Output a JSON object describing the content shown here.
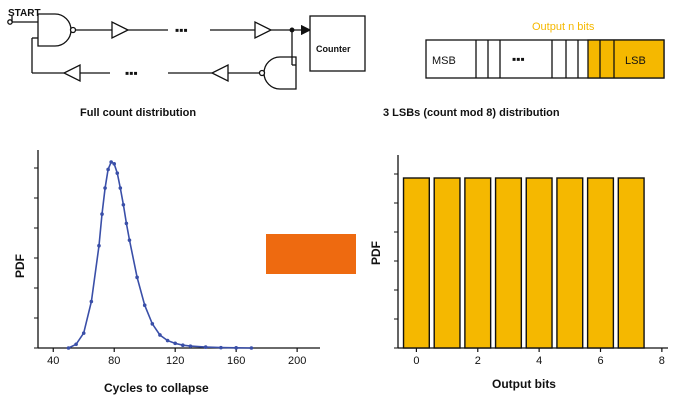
{
  "circuit": {
    "start_label": "START",
    "counter_label": "Counter",
    "ellipsis_top": "▪▪▪",
    "ellipsis_bottom": "▪▪▪"
  },
  "register": {
    "output_label": "Output n bits",
    "msb_label": "MSB",
    "lsb_label": "LSB",
    "ellipsis": "▪▪▪"
  },
  "colors": {
    "accent_orange": "#f5b800",
    "arrow_orange": "#ee6a10",
    "curve_blue": "#3a4fa8"
  },
  "chart_data": [
    {
      "type": "line",
      "title": "Full count distribution",
      "xlabel": "Cycles to collapse",
      "ylabel": "PDF",
      "xlim": [
        30,
        215
      ],
      "ylim": [
        0,
        1
      ],
      "xticks": [
        40,
        80,
        120,
        160,
        200
      ],
      "peak_x": 79,
      "x": [
        50,
        55,
        60,
        65,
        70,
        72,
        74,
        76,
        78,
        80,
        82,
        84,
        86,
        88,
        90,
        95,
        100,
        105,
        110,
        115,
        120,
        125,
        130,
        140,
        150,
        160,
        170
      ],
      "y": [
        0.0,
        0.02,
        0.08,
        0.25,
        0.55,
        0.72,
        0.86,
        0.96,
        1.0,
        0.99,
        0.94,
        0.86,
        0.77,
        0.67,
        0.58,
        0.38,
        0.23,
        0.13,
        0.07,
        0.04,
        0.025,
        0.015,
        0.01,
        0.005,
        0.002,
        0.001,
        0.0
      ]
    },
    {
      "type": "bar",
      "title": "3 LSBs (count mod 8) distribution",
      "xlabel": "Output bits",
      "ylabel": "PDF",
      "xlim": [
        -0.6,
        8.2
      ],
      "ylim": [
        0,
        1
      ],
      "xticks": [
        0,
        2,
        4,
        6,
        8
      ],
      "categories": [
        0,
        1,
        2,
        3,
        4,
        5,
        6,
        7
      ],
      "values": [
        1,
        1,
        1,
        1,
        1,
        1,
        1,
        1
      ]
    }
  ]
}
